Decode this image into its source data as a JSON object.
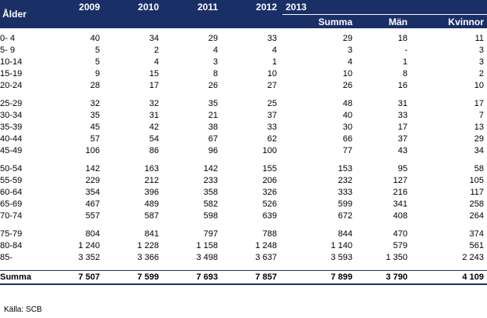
{
  "header": {
    "age_label": "Ålder",
    "years": [
      "2009",
      "2010",
      "2011",
      "2012"
    ],
    "year_2013": "2013",
    "sub_2013": [
      "Summa",
      "Män",
      "Kvinnor"
    ]
  },
  "groups": [
    [
      {
        "age": "0- 4",
        "v": [
          "40",
          "34",
          "29",
          "33",
          "29",
          "18",
          "11"
        ]
      },
      {
        "age": "5- 9",
        "v": [
          "5",
          "2",
          "4",
          "4",
          "3",
          "-",
          "3"
        ]
      },
      {
        "age": "10-14",
        "v": [
          "5",
          "4",
          "3",
          "1",
          "4",
          "1",
          "3"
        ]
      },
      {
        "age": "15-19",
        "v": [
          "9",
          "15",
          "8",
          "10",
          "10",
          "8",
          "2"
        ]
      },
      {
        "age": "20-24",
        "v": [
          "28",
          "17",
          "26",
          "27",
          "26",
          "16",
          "10"
        ]
      }
    ],
    [
      {
        "age": "25-29",
        "v": [
          "32",
          "32",
          "35",
          "25",
          "48",
          "31",
          "17"
        ]
      },
      {
        "age": "30-34",
        "v": [
          "35",
          "31",
          "21",
          "37",
          "40",
          "33",
          "7"
        ]
      },
      {
        "age": "35-39",
        "v": [
          "45",
          "42",
          "38",
          "33",
          "30",
          "17",
          "13"
        ]
      },
      {
        "age": "40-44",
        "v": [
          "57",
          "54",
          "67",
          "62",
          "66",
          "37",
          "29"
        ]
      },
      {
        "age": "45-49",
        "v": [
          "106",
          "86",
          "96",
          "100",
          "77",
          "43",
          "34"
        ]
      }
    ],
    [
      {
        "age": "50-54",
        "v": [
          "142",
          "163",
          "142",
          "155",
          "153",
          "95",
          "58"
        ]
      },
      {
        "age": "55-59",
        "v": [
          "229",
          "212",
          "233",
          "206",
          "232",
          "127",
          "105"
        ]
      },
      {
        "age": "60-64",
        "v": [
          "354",
          "396",
          "358",
          "326",
          "333",
          "216",
          "117"
        ]
      },
      {
        "age": "65-69",
        "v": [
          "467",
          "489",
          "582",
          "526",
          "599",
          "341",
          "258"
        ]
      },
      {
        "age": "70-74",
        "v": [
          "557",
          "587",
          "598",
          "639",
          "672",
          "408",
          "264"
        ]
      }
    ],
    [
      {
        "age": "75-79",
        "v": [
          "804",
          "841",
          "797",
          "788",
          "844",
          "470",
          "374"
        ]
      },
      {
        "age": "80-84",
        "v": [
          "1 240",
          "1 228",
          "1 158",
          "1 248",
          "1 140",
          "579",
          "561"
        ]
      },
      {
        "age": "85-",
        "v": [
          "3 352",
          "3 366",
          "3 498",
          "3 637",
          "3 593",
          "1 350",
          "2 243"
        ]
      }
    ]
  ],
  "total": {
    "label": "Summa",
    "v": [
      "7 507",
      "7 599",
      "7 693",
      "7 857",
      "7 899",
      "3 790",
      "4 109"
    ]
  },
  "source": "Källa:  SCB"
}
